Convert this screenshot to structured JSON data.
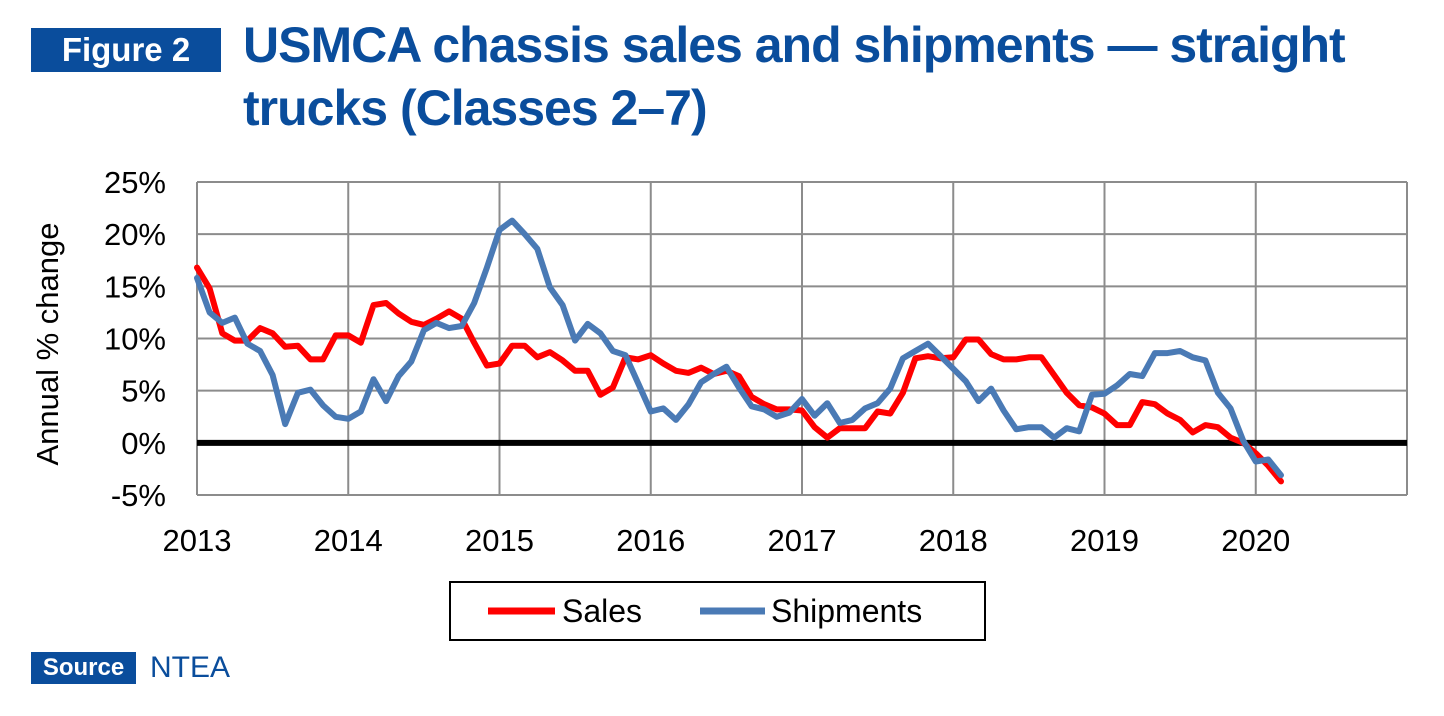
{
  "figure_label": "Figure 2",
  "title": "USMCA chassis sales and shipments — straight trucks (Classes 2–7)",
  "source_label": "Source",
  "source_text": "NTEA",
  "colors": {
    "accent": "#0a4d9c",
    "sales": "#ff0000",
    "shipments": "#4a7ab5"
  },
  "chart_data": {
    "type": "line",
    "title": "",
    "xlabel": "",
    "ylabel": "Annual % change",
    "xlim": [
      2013,
      2021
    ],
    "ylim": [
      -5,
      25
    ],
    "x_ticks": [
      "2013",
      "2014",
      "2015",
      "2016",
      "2017",
      "2018",
      "2019",
      "2020"
    ],
    "y_ticks": [
      "25%",
      "20%",
      "15%",
      "10%",
      "5%",
      "0%",
      "-5%"
    ],
    "grid": true,
    "legend_position": "bottom-center",
    "reference_line": 0,
    "series": [
      {
        "name": "Sales",
        "color": "#ff0000",
        "x": [
          2013.0,
          2013.083,
          2013.167,
          2013.25,
          2013.333,
          2013.417,
          2013.5,
          2013.583,
          2013.667,
          2013.75,
          2013.833,
          2013.917,
          2014.0,
          2014.083,
          2014.167,
          2014.25,
          2014.333,
          2014.417,
          2014.5,
          2014.583,
          2014.667,
          2014.75,
          2014.833,
          2014.917,
          2015.0,
          2015.083,
          2015.167,
          2015.25,
          2015.333,
          2015.417,
          2015.5,
          2015.583,
          2015.667,
          2015.75,
          2015.833,
          2015.917,
          2016.0,
          2016.083,
          2016.167,
          2016.25,
          2016.333,
          2016.417,
          2016.5,
          2016.583,
          2016.667,
          2016.75,
          2016.833,
          2016.917,
          2017.0,
          2017.083,
          2017.167,
          2017.25,
          2017.333,
          2017.417,
          2017.5,
          2017.583,
          2017.667,
          2017.75,
          2017.833,
          2017.917,
          2018.0,
          2018.083,
          2018.167,
          2018.25,
          2018.333,
          2018.417,
          2018.5,
          2018.583,
          2018.667,
          2018.75,
          2018.833,
          2018.917,
          2019.0,
          2019.083,
          2019.167,
          2019.25,
          2019.333,
          2019.417,
          2019.5,
          2019.583,
          2019.667,
          2019.75,
          2019.833,
          2019.917,
          2020.0,
          2020.083,
          2020.167
        ],
        "values": [
          16.8,
          14.8,
          10.5,
          9.8,
          9.8,
          11.0,
          10.5,
          9.2,
          9.3,
          8.0,
          8.0,
          10.3,
          10.3,
          9.6,
          13.2,
          13.4,
          12.4,
          11.6,
          11.3,
          11.9,
          12.6,
          11.9,
          9.6,
          7.4,
          7.6,
          9.3,
          9.3,
          8.2,
          8.7,
          7.9,
          6.9,
          6.9,
          4.6,
          5.3,
          8.2,
          8.0,
          8.4,
          7.6,
          6.9,
          6.7,
          7.2,
          6.6,
          6.9,
          6.4,
          4.4,
          3.7,
          3.2,
          3.2,
          3.1,
          1.5,
          0.5,
          1.4,
          1.4,
          1.4,
          3.0,
          2.8,
          4.8,
          8.1,
          8.3,
          8.1,
          8.2,
          9.9,
          9.9,
          8.5,
          8.0,
          8.0,
          8.2,
          8.2,
          6.5,
          4.8,
          3.6,
          3.4,
          2.8,
          1.7,
          1.7,
          3.9,
          3.7,
          2.8,
          2.2,
          1.0,
          1.7,
          1.5,
          0.5,
          0.0,
          -1.0,
          -2.2,
          -3.7
        ]
      },
      {
        "name": "Shipments",
        "color": "#4a7ab5",
        "x": [
          2013.0,
          2013.083,
          2013.167,
          2013.25,
          2013.333,
          2013.417,
          2013.5,
          2013.583,
          2013.667,
          2013.75,
          2013.833,
          2013.917,
          2014.0,
          2014.083,
          2014.167,
          2014.25,
          2014.333,
          2014.417,
          2014.5,
          2014.583,
          2014.667,
          2014.75,
          2014.833,
          2014.917,
          2015.0,
          2015.083,
          2015.167,
          2015.25,
          2015.333,
          2015.417,
          2015.5,
          2015.583,
          2015.667,
          2015.75,
          2015.833,
          2015.917,
          2016.0,
          2016.083,
          2016.167,
          2016.25,
          2016.333,
          2016.417,
          2016.5,
          2016.583,
          2016.667,
          2016.75,
          2016.833,
          2016.917,
          2017.0,
          2017.083,
          2017.167,
          2017.25,
          2017.333,
          2017.417,
          2017.5,
          2017.583,
          2017.667,
          2017.75,
          2017.833,
          2017.917,
          2018.0,
          2018.083,
          2018.167,
          2018.25,
          2018.333,
          2018.417,
          2018.5,
          2018.583,
          2018.667,
          2018.75,
          2018.833,
          2018.917,
          2019.0,
          2019.083,
          2019.167,
          2019.25,
          2019.333,
          2019.417,
          2019.5,
          2019.583,
          2019.667,
          2019.75,
          2019.833,
          2019.917,
          2020.0,
          2020.083,
          2020.167
        ],
        "values": [
          15.8,
          12.5,
          11.5,
          12.0,
          9.5,
          8.8,
          6.5,
          1.8,
          4.8,
          5.1,
          3.6,
          2.5,
          2.3,
          3.0,
          6.1,
          4.0,
          6.4,
          7.8,
          10.8,
          11.5,
          11.0,
          11.2,
          13.4,
          16.8,
          20.4,
          21.3,
          20.0,
          18.6,
          14.9,
          13.2,
          9.8,
          11.4,
          10.5,
          8.8,
          8.4,
          5.7,
          3.0,
          3.3,
          2.2,
          3.7,
          5.8,
          6.6,
          7.3,
          5.3,
          3.5,
          3.2,
          2.5,
          2.9,
          4.2,
          2.6,
          3.8,
          1.9,
          2.2,
          3.3,
          3.8,
          5.2,
          8.1,
          8.8,
          9.5,
          8.3,
          7.1,
          5.9,
          4.0,
          5.2,
          3.1,
          1.3,
          1.5,
          1.5,
          0.5,
          1.4,
          1.1,
          4.6,
          4.7,
          5.5,
          6.6,
          6.4,
          8.6,
          8.6,
          8.8,
          8.2,
          7.9,
          4.8,
          3.3,
          0.2,
          -1.8,
          -1.6,
          -3.1
        ]
      }
    ]
  }
}
